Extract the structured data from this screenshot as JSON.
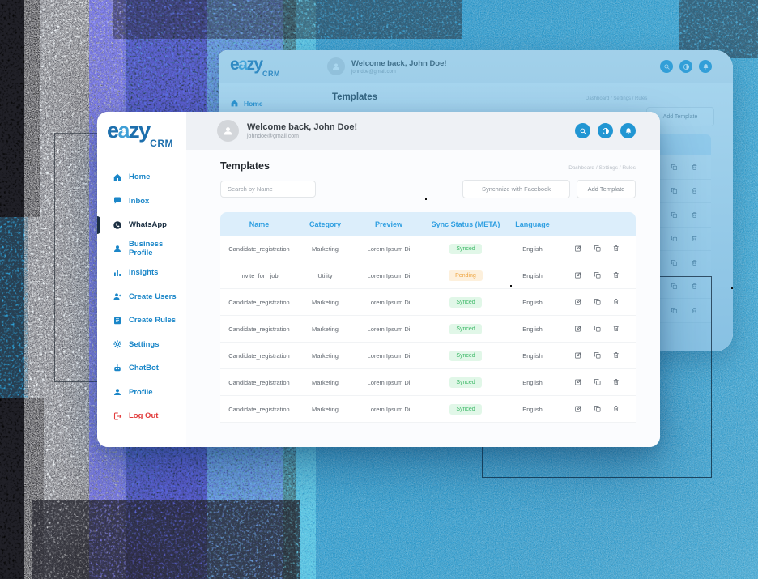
{
  "brand": {
    "main": "eazy",
    "sub": "CRM"
  },
  "user": {
    "welcome": "Welcome back, John Doe!",
    "email": "johndoe@gmail.com"
  },
  "header_icons": [
    "search",
    "theme-toggle",
    "notifications"
  ],
  "page": {
    "title": "Templates",
    "breadcrumb": "Dashboard / Settings / Rules"
  },
  "controls": {
    "search_placeholder": "Search by Name",
    "sync_label": "Synchnize with Facebook",
    "add_label": "Add Template"
  },
  "sidebar": {
    "items": [
      {
        "label": "Home",
        "icon": "home"
      },
      {
        "label": "Inbox",
        "icon": "inbox"
      },
      {
        "label": "WhatsApp",
        "icon": "whatsapp",
        "active": true
      },
      {
        "label": "Business Profile",
        "icon": "business-profile"
      },
      {
        "label": "Insights",
        "icon": "insights"
      },
      {
        "label": "Create Users",
        "icon": "create-users"
      },
      {
        "label": "Create Rules",
        "icon": "create-rules"
      },
      {
        "label": "Settings",
        "icon": "settings"
      },
      {
        "label": "ChatBot",
        "icon": "chatbot"
      },
      {
        "label": "Profile",
        "icon": "profile"
      },
      {
        "label": "Log Out",
        "icon": "logout",
        "danger": true
      }
    ]
  },
  "table": {
    "headers": [
      "Name",
      "Category",
      "Preview",
      "Sync Status (META)",
      "Language"
    ],
    "row_actions": [
      "edit",
      "copy",
      "delete"
    ],
    "rows": [
      {
        "name": "Candidate_registration",
        "category": "Marketing",
        "preview": "Lorem Ipsum Di",
        "status": "Synced",
        "status_type": "synced",
        "language": "English"
      },
      {
        "name": "Invite_for _job",
        "category": "Utility",
        "preview": "Lorem Ipsum Di",
        "status": "Pending",
        "status_type": "pending",
        "language": "English"
      },
      {
        "name": "Candidate_registration",
        "category": "Marketing",
        "preview": "Lorem Ipsum Di",
        "status": "Synced",
        "status_type": "synced",
        "language": "English"
      },
      {
        "name": "Candidate_registration",
        "category": "Marketing",
        "preview": "Lorem Ipsum Di",
        "status": "Synced",
        "status_type": "synced",
        "language": "English"
      },
      {
        "name": "Candidate_registration",
        "category": "Marketing",
        "preview": "Lorem Ipsum Di",
        "status": "Synced",
        "status_type": "synced",
        "language": "English"
      },
      {
        "name": "Candidate_registration",
        "category": "Marketing",
        "preview": "Lorem Ipsum Di",
        "status": "Synced",
        "status_type": "synced",
        "language": "English"
      },
      {
        "name": "Candidate_registration",
        "category": "Marketing",
        "preview": "Lorem Ipsum Di",
        "status": "Synced",
        "status_type": "synced",
        "language": "English"
      }
    ]
  },
  "background_window": {
    "home_label": "Home",
    "visible_action_rows": 7,
    "row_actions": [
      "copy",
      "delete"
    ]
  },
  "colors": {
    "accent": "#2196d3",
    "sidebar_link": "#1a86c8",
    "active_item": "#1b2f42",
    "logout": "#e23b3b",
    "table_header_bg": "#dceefb",
    "table_header_text": "#2f9fe1",
    "synced_bg": "#e1f7e8",
    "synced_text": "#3bb866",
    "pending_bg": "#fdf0dc",
    "pending_text": "#eda33d",
    "logo_dark": "#1d6fad",
    "logo_light": "#3f9fd6"
  }
}
